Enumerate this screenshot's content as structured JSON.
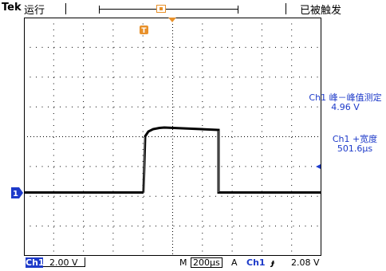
{
  "topbar": {
    "brand": "Tek",
    "run_status": "运行",
    "trigger_status": "已被触发",
    "trigger_position_marker": "T"
  },
  "measurements": {
    "m1_label": "Ch1 峰－峰值测定",
    "m1_value": "4.96 V",
    "m2_label": "Ch1 +宽度",
    "m2_value": "501.6μs"
  },
  "channel_marker": "1",
  "bottombar": {
    "channel": "Ch1",
    "volts_per_div": "2.00 V",
    "time_prefix": "M",
    "time_per_div": "200μs",
    "trigger_prefix": "A",
    "trigger_channel": "Ch1",
    "trigger_slope_icon": "rising-edge-icon",
    "trigger_level": "2.08 V"
  },
  "colors": {
    "accent_blue": "#1d3ac9",
    "trigger_orange": "#e8912b",
    "trace": "#000000"
  }
}
